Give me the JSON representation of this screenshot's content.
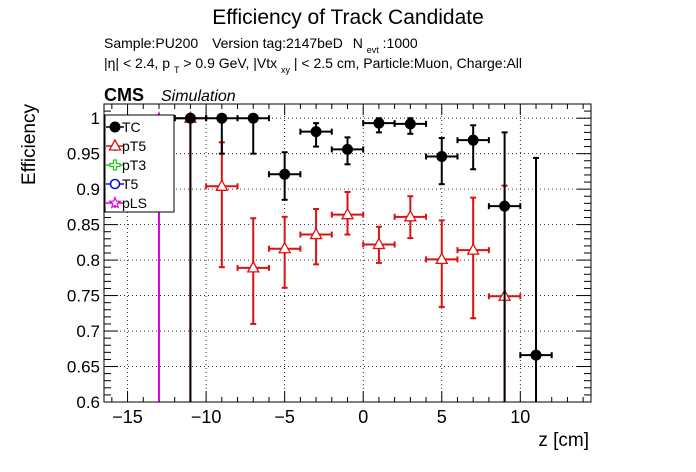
{
  "chart_data": {
    "type": "scatter",
    "title": "Efficiency of Track Candidate",
    "subtitle_line1": {
      "sample": "Sample:PU200",
      "version": "Version tag:2147beD",
      "nevt_label": "N",
      "nevt_sub": "evt",
      "nevt_value": ":1000"
    },
    "subtitle_line2": {
      "a": "|η| < 2.4, p",
      "a_sub": "T",
      "b": " > 0.9 GeV, |Vtx",
      "b_sub": "xy",
      "c": "| < 2.5 cm, Particle:Muon, Charge:All"
    },
    "cms_label": "CMS",
    "simulation_label": "Simulation",
    "xlabel": "z [cm]",
    "ylabel": "Efficiency",
    "xlim": [
      -16.5,
      14.5
    ],
    "ylim": [
      0.6,
      1.02
    ],
    "x_ticks": [
      -15,
      -10,
      -5,
      0,
      5,
      10
    ],
    "x_tick_labels": [
      "−15",
      "−10",
      "−5",
      "0",
      "5",
      "10"
    ],
    "y_ticks": [
      0.6,
      0.65,
      0.7,
      0.75,
      0.8,
      0.85,
      0.9,
      0.95,
      1.0
    ],
    "y_tick_labels": [
      "0.6",
      "0.65",
      "0.7",
      "0.75",
      "0.8",
      "0.85",
      "0.9",
      "0.95",
      "1"
    ],
    "grid": true,
    "legend_position": "top-left",
    "series": [
      {
        "name": "TC",
        "color": "#000000",
        "marker": "filled-circle",
        "points": [
          {
            "x": -11,
            "y": 1.0,
            "xerr": 1,
            "ylo": 0.6,
            "yhi": 1.0
          },
          {
            "x": -9,
            "y": 1.0,
            "xerr": 1,
            "ylo": 0.95,
            "yhi": 1.0
          },
          {
            "x": -7,
            "y": 1.0,
            "xerr": 1,
            "ylo": 0.95,
            "yhi": 1.0
          },
          {
            "x": -5,
            "y": 0.921,
            "xerr": 1,
            "ylo": 0.885,
            "yhi": 0.952
          },
          {
            "x": -3,
            "y": 0.981,
            "xerr": 1,
            "ylo": 0.96,
            "yhi": 0.993
          },
          {
            "x": -1,
            "y": 0.956,
            "xerr": 1,
            "ylo": 0.935,
            "yhi": 0.973
          },
          {
            "x": 1,
            "y": 0.993,
            "xerr": 1,
            "ylo": 0.98,
            "yhi": 1.0
          },
          {
            "x": 3,
            "y": 0.992,
            "xerr": 1,
            "ylo": 0.978,
            "yhi": 1.0
          },
          {
            "x": 5,
            "y": 0.946,
            "xerr": 1,
            "ylo": 0.907,
            "yhi": 0.972
          },
          {
            "x": 7,
            "y": 0.969,
            "xerr": 1,
            "ylo": 0.928,
            "yhi": 0.99
          },
          {
            "x": 9,
            "y": 0.876,
            "xerr": 1,
            "ylo": 0.6,
            "yhi": 0.98
          },
          {
            "x": 11,
            "y": 0.666,
            "xerr": 1,
            "ylo": 0.6,
            "yhi": 0.944
          }
        ]
      },
      {
        "name": "pT5",
        "color": "#dd1111",
        "marker": "open-triangle",
        "points": [
          {
            "x": -11,
            "y": 1.0,
            "xerr": 1,
            "ylo": 0.6,
            "yhi": 1.0
          },
          {
            "x": -9,
            "y": 0.904,
            "xerr": 1,
            "ylo": 0.79,
            "yhi": 0.966
          },
          {
            "x": -7,
            "y": 0.789,
            "xerr": 1,
            "ylo": 0.71,
            "yhi": 0.859
          },
          {
            "x": -5,
            "y": 0.816,
            "xerr": 1,
            "ylo": 0.761,
            "yhi": 0.861
          },
          {
            "x": -3,
            "y": 0.836,
            "xerr": 1,
            "ylo": 0.794,
            "yhi": 0.872
          },
          {
            "x": -1,
            "y": 0.864,
            "xerr": 1,
            "ylo": 0.836,
            "yhi": 0.896
          },
          {
            "x": 1,
            "y": 0.822,
            "xerr": 1,
            "ylo": 0.796,
            "yhi": 0.847
          },
          {
            "x": 3,
            "y": 0.861,
            "xerr": 1,
            "ylo": 0.831,
            "yhi": 0.89
          },
          {
            "x": 5,
            "y": 0.801,
            "xerr": 1,
            "ylo": 0.734,
            "yhi": 0.856
          },
          {
            "x": 7,
            "y": 0.814,
            "xerr": 1,
            "ylo": 0.718,
            "yhi": 0.888
          },
          {
            "x": 9,
            "y": 0.749,
            "xerr": 1,
            "ylo": 0.6,
            "yhi": 0.905
          }
        ]
      },
      {
        "name": "pT3",
        "color": "#22cc22",
        "marker": "open-cross",
        "points": []
      },
      {
        "name": "T5",
        "color": "#1111dd",
        "marker": "open-circle",
        "points": []
      },
      {
        "name": "pLS",
        "color": "#dd00dd",
        "marker": "open-star",
        "points": [
          {
            "x": -13,
            "y": 1.0,
            "xerr": 1,
            "ylo": 0.6,
            "yhi": 1.0
          }
        ]
      }
    ]
  }
}
